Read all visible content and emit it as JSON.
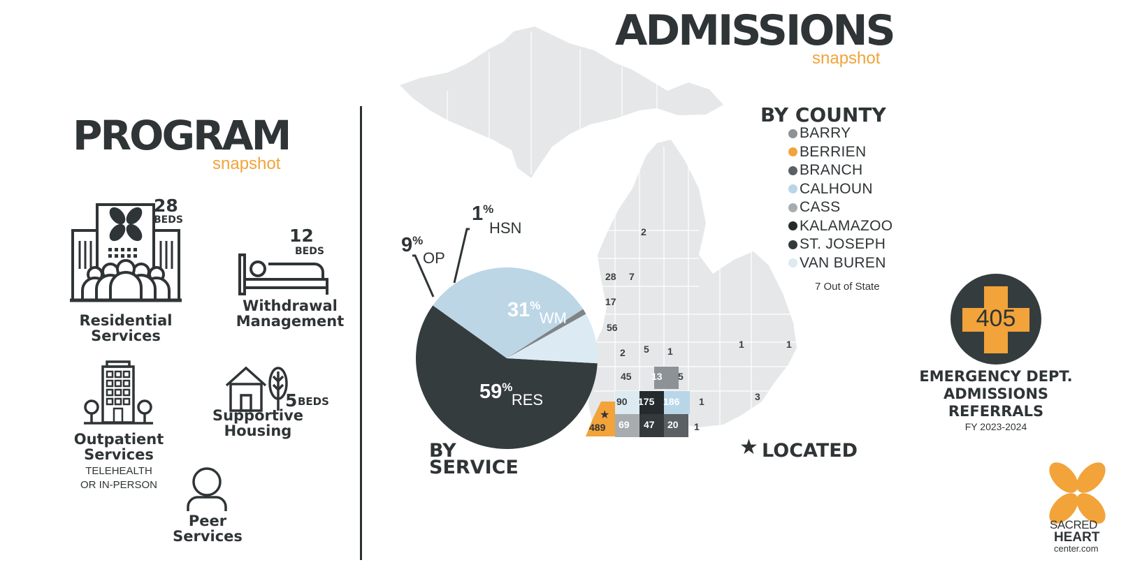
{
  "admissions": {
    "title": "ADMISSIONS",
    "subtitle": "snapshot"
  },
  "program": {
    "title": "PROGRAM",
    "subtitle": "snapshot",
    "items": [
      {
        "name": "Residential\nServices",
        "beds_number": "28",
        "beds_label": "BEDS",
        "icon": "building-people-icon"
      },
      {
        "name": "Withdrawal\nManagement",
        "beds_number": "12",
        "beds_label": "BEDS",
        "icon": "bed-icon"
      },
      {
        "name": "Outpatient\nServices",
        "note": "TELEHEALTH\nOR IN-PERSON",
        "icon": "office-building-icon"
      },
      {
        "name": "Supportive\nHousing",
        "beds_number": "5",
        "beds_label": "BEDS",
        "icon": "house-tree-icon"
      },
      {
        "name": "Peer\nServices",
        "icon": "person-icon"
      }
    ]
  },
  "by_service": {
    "label_line1": "BY",
    "label_line2": "SERVICE",
    "slices": [
      {
        "value": "59",
        "pct": "%",
        "name": "RES",
        "fraction": 0.59,
        "color": "#353c3e"
      },
      {
        "value": "31",
        "pct": "%",
        "name": "WM",
        "fraction": 0.31,
        "color": "#bcd6e6"
      },
      {
        "value": "1",
        "pct": "%",
        "name": "HSN",
        "fraction": 0.01,
        "color": "#7f8486"
      },
      {
        "value": "9",
        "pct": "%",
        "name": "OP",
        "fraction": 0.09,
        "color": "#dbeaf3"
      }
    ]
  },
  "by_county": {
    "title": "BY COUNTY",
    "legend": [
      {
        "name": "BARRY",
        "color": "#8c9296"
      },
      {
        "name": "BERRIEN",
        "color": "#f2a33a"
      },
      {
        "name": "BRANCH",
        "color": "#5a6064"
      },
      {
        "name": "CALHOUN",
        "color": "#b9d6e8"
      },
      {
        "name": "CASS",
        "color": "#a9acae"
      },
      {
        "name": "KALAMAZOO",
        "color": "#252a2c"
      },
      {
        "name": "ST. JOSEPH",
        "color": "#34393b"
      },
      {
        "name": "VAN BUREN",
        "color": "#dceaf2"
      }
    ],
    "out_of_state": "7 Out of State",
    "map_numbers": [
      "2",
      "28",
      "7",
      "17",
      "56",
      "2",
      "5",
      "1",
      "1",
      "1",
      "45",
      "13",
      "5",
      "90",
      "175",
      "186",
      "1",
      "3",
      "489",
      "69",
      "47",
      "20",
      "1"
    ],
    "located_label": "LOCATED"
  },
  "emergency": {
    "count": "405",
    "line1": "EMERGENCY DEPT.",
    "line2": "ADMISSIONS",
    "line3": "REFERRALS",
    "period": "FY 2023-2024"
  },
  "logo": {
    "line1": "SACRED",
    "line2": "HEART",
    "line3": "center.com"
  },
  "colors": {
    "accent": "#f2a33a",
    "dark": "#2f3436",
    "map": "#e6e7e8"
  }
}
